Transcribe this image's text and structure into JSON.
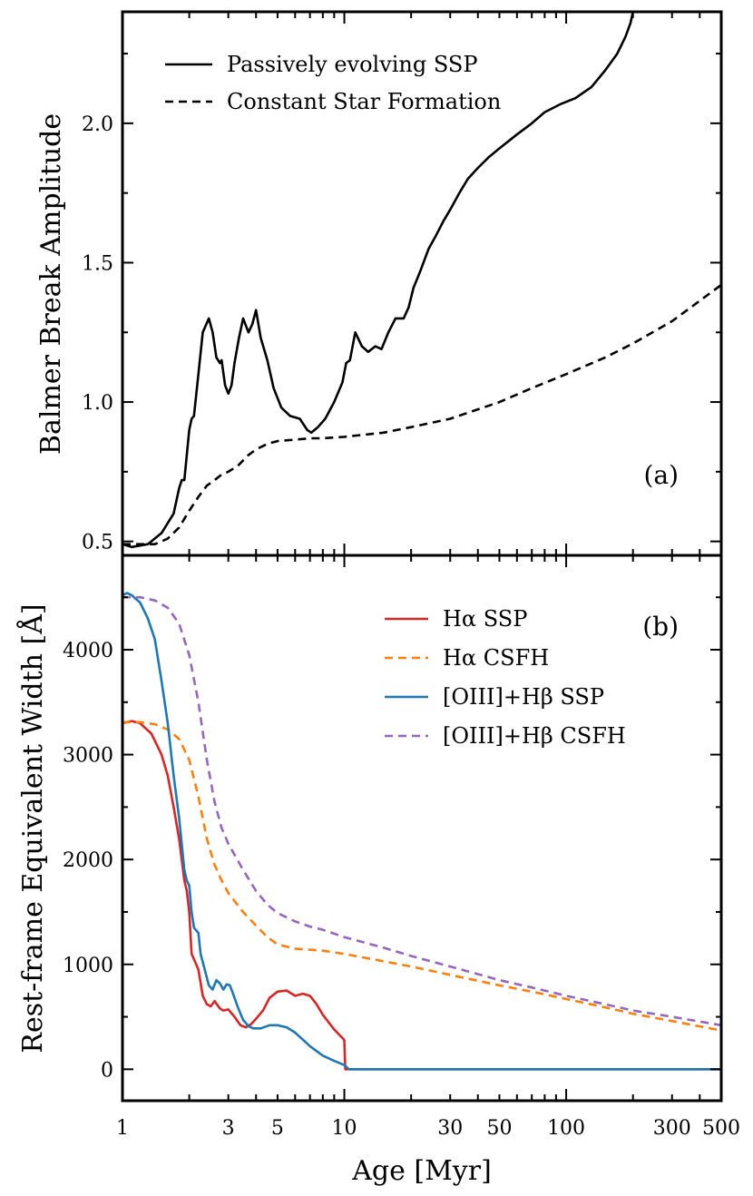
{
  "figure": {
    "xlabel": "Age [Myr]",
    "xscale": "log",
    "xlim": [
      1,
      500
    ],
    "xtick_values": [
      1,
      3,
      5,
      10,
      30,
      50,
      100,
      300,
      500
    ],
    "xtick_labels": [
      "1",
      "3",
      "5",
      "10",
      "30",
      "50",
      "100",
      "300",
      "500"
    ]
  },
  "chart_data": [
    {
      "type": "line",
      "panel_label": "(a)",
      "ylabel": "Balmer Break Amplitude",
      "ylim": [
        0.45,
        2.4
      ],
      "ytick_values": [
        0.5,
        1.0,
        1.5,
        2.0
      ],
      "ytick_labels": [
        "0.5",
        "1.0",
        "1.5",
        "2.0"
      ],
      "legend_position": "top-left",
      "series": [
        {
          "name": "Passively evolving SSP",
          "color": "#000000",
          "dash": "solid",
          "x": [
            1,
            1.1,
            1.3,
            1.5,
            1.7,
            1.8,
            1.85,
            1.9,
            2.0,
            2.05,
            2.1,
            2.2,
            2.3,
            2.45,
            2.55,
            2.65,
            2.75,
            2.8,
            2.9,
            3.0,
            3.1,
            3.2,
            3.35,
            3.5,
            3.7,
            3.85,
            4.0,
            4.2,
            4.5,
            4.8,
            5.2,
            5.7,
            6.3,
            6.8,
            7.1,
            7.6,
            8.2,
            9.0,
            9.8,
            10.2,
            10.6,
            11.2,
            12.0,
            12.8,
            13.8,
            14.7,
            15.8,
            17.0,
            18.5,
            19.5,
            20.5,
            22,
            24,
            26,
            28,
            30,
            33,
            36,
            40,
            45,
            50,
            60,
            70,
            80,
            95,
            110,
            130,
            150,
            170,
            185,
            195,
            200
          ],
          "y": [
            0.49,
            0.48,
            0.49,
            0.53,
            0.6,
            0.69,
            0.72,
            0.72,
            0.9,
            0.94,
            0.95,
            1.1,
            1.25,
            1.3,
            1.25,
            1.16,
            1.14,
            1.15,
            1.06,
            1.03,
            1.06,
            1.14,
            1.23,
            1.3,
            1.25,
            1.28,
            1.33,
            1.23,
            1.15,
            1.05,
            0.98,
            0.95,
            0.94,
            0.9,
            0.89,
            0.91,
            0.94,
            1.0,
            1.07,
            1.14,
            1.15,
            1.25,
            1.2,
            1.18,
            1.2,
            1.19,
            1.25,
            1.3,
            1.3,
            1.34,
            1.41,
            1.47,
            1.55,
            1.6,
            1.65,
            1.69,
            1.75,
            1.8,
            1.84,
            1.88,
            1.91,
            1.96,
            2.0,
            2.04,
            2.07,
            2.09,
            2.13,
            2.19,
            2.25,
            2.31,
            2.36,
            2.4
          ]
        },
        {
          "name": "Constant Star Formation",
          "color": "#000000",
          "dash": "dashed",
          "x": [
            1,
            1.2,
            1.4,
            1.6,
            1.8,
            2.0,
            2.2,
            2.4,
            2.6,
            2.8,
            3.0,
            3.3,
            3.7,
            4.0,
            4.5,
            5.0,
            6.0,
            7.0,
            8.0,
            10,
            15,
            20,
            30,
            50,
            70,
            100,
            150,
            200,
            300,
            500
          ],
          "y": [
            0.49,
            0.49,
            0.49,
            0.51,
            0.55,
            0.61,
            0.66,
            0.7,
            0.72,
            0.74,
            0.75,
            0.77,
            0.81,
            0.83,
            0.85,
            0.86,
            0.865,
            0.87,
            0.87,
            0.875,
            0.89,
            0.91,
            0.94,
            1.0,
            1.05,
            1.1,
            1.16,
            1.21,
            1.29,
            1.42
          ]
        }
      ]
    },
    {
      "type": "line",
      "panel_label": "(b)",
      "ylabel": "Rest-frame Equivalent Width [Å]",
      "ylim": [
        -300,
        4900
      ],
      "ytick_values": [
        0,
        1000,
        2000,
        3000,
        4000
      ],
      "ytick_labels": [
        "0",
        "1000",
        "2000",
        "3000",
        "4000"
      ],
      "legend_position": "top-right",
      "series": [
        {
          "name": "Hα SSP",
          "color": "#d62728",
          "dash": "solid",
          "x": [
            1,
            1.1,
            1.2,
            1.35,
            1.5,
            1.6,
            1.7,
            1.8,
            1.9,
            1.95,
            2.0,
            2.05,
            2.1,
            2.15,
            2.2,
            2.3,
            2.4,
            2.5,
            2.6,
            2.75,
            2.85,
            3.0,
            3.2,
            3.4,
            3.6,
            3.8,
            4.0,
            4.3,
            4.6,
            5.0,
            5.5,
            6.0,
            6.5,
            7.0,
            7.5,
            8.0,
            9.0,
            10.0,
            10.1,
            10.3,
            20,
            50,
            100,
            500
          ],
          "y": [
            3300,
            3320,
            3300,
            3200,
            3000,
            2800,
            2500,
            2200,
            1800,
            1700,
            1500,
            1100,
            1050,
            1000,
            950,
            700,
            620,
            600,
            650,
            580,
            560,
            570,
            500,
            420,
            400,
            430,
            480,
            560,
            680,
            740,
            750,
            700,
            720,
            700,
            620,
            520,
            380,
            280,
            0,
            0,
            0,
            0,
            0,
            0
          ]
        },
        {
          "name": "Hα CSFH",
          "color": "#ff7f0e",
          "dash": "dashed",
          "x": [
            1,
            1.2,
            1.4,
            1.6,
            1.8,
            2.0,
            2.2,
            2.4,
            2.6,
            2.8,
            3.0,
            3.5,
            4.0,
            4.5,
            5.0,
            6.0,
            7.0,
            8.0,
            10,
            15,
            20,
            30,
            50,
            70,
            100,
            150,
            200,
            300,
            500
          ],
          "y": [
            3310,
            3310,
            3290,
            3240,
            3150,
            2950,
            2600,
            2200,
            1950,
            1800,
            1680,
            1500,
            1370,
            1260,
            1190,
            1150,
            1140,
            1130,
            1100,
            1030,
            980,
            900,
            800,
            740,
            670,
            590,
            530,
            460,
            370
          ]
        },
        {
          "name": "[OIII]+Hβ SSP",
          "color": "#1f77b4",
          "dash": "solid",
          "x": [
            1,
            1.05,
            1.1,
            1.2,
            1.3,
            1.4,
            1.5,
            1.6,
            1.7,
            1.8,
            1.9,
            1.95,
            2.0,
            2.05,
            2.1,
            2.2,
            2.25,
            2.35,
            2.45,
            2.55,
            2.65,
            2.75,
            2.85,
            2.95,
            3.05,
            3.15,
            3.3,
            3.5,
            3.7,
            3.9,
            4.2,
            4.6,
            5.0,
            5.5,
            6.0,
            7.0,
            8.0,
            9.0,
            10.0,
            10.5,
            20,
            50,
            100,
            500
          ],
          "y": [
            4520,
            4540,
            4520,
            4450,
            4300,
            4100,
            3700,
            3300,
            2800,
            2400,
            1900,
            1800,
            1750,
            1500,
            1350,
            1300,
            1100,
            950,
            800,
            760,
            850,
            820,
            760,
            810,
            800,
            720,
            600,
            470,
            410,
            390,
            390,
            420,
            420,
            400,
            350,
            220,
            130,
            80,
            40,
            0,
            0,
            0,
            0,
            0
          ]
        },
        {
          "name": "[OIII]+Hβ CSFH",
          "color": "#9467bd",
          "dash": "dashed",
          "x": [
            1,
            1.2,
            1.4,
            1.6,
            1.8,
            2.0,
            2.2,
            2.4,
            2.6,
            2.8,
            3.0,
            3.5,
            4.0,
            4.5,
            5.0,
            6.0,
            7.0,
            8.0,
            10,
            15,
            20,
            30,
            50,
            70,
            100,
            150,
            200,
            300,
            500
          ],
          "y": [
            4500,
            4500,
            4470,
            4400,
            4250,
            3950,
            3500,
            2950,
            2550,
            2300,
            2150,
            1900,
            1700,
            1570,
            1490,
            1410,
            1360,
            1330,
            1260,
            1160,
            1080,
            980,
            850,
            780,
            700,
            620,
            560,
            500,
            420
          ]
        }
      ]
    }
  ]
}
